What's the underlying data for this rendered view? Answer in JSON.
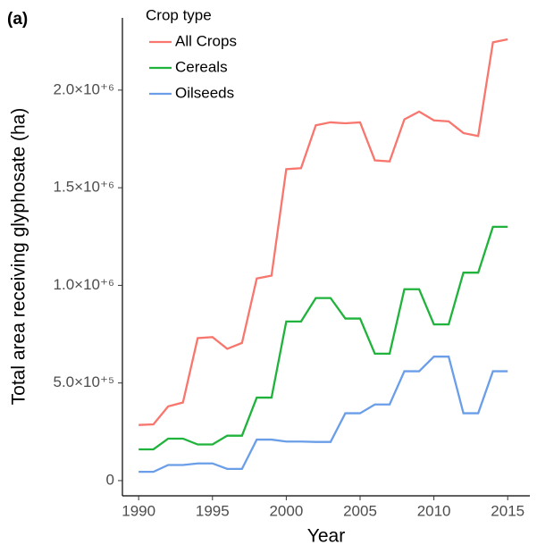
{
  "chart_data": {
    "type": "line",
    "annotation": "(a)",
    "x_label": "Year",
    "y_label": "Total area receiving glyphosate (ha)",
    "legend_title": "Crop type",
    "legend": "top-left",
    "x": [
      1990,
      1991,
      1992,
      1993,
      1994,
      1995,
      1996,
      1997,
      1998,
      1999,
      2000,
      2001,
      2002,
      2003,
      2004,
      2005,
      2006,
      2007,
      2008,
      2009,
      2010,
      2011,
      2012,
      2013,
      2014,
      2015
    ],
    "series": [
      {
        "name": "All Crops",
        "color": "#f8766d",
        "values": [
          285000,
          288000,
          380000,
          400000,
          730000,
          735000,
          675000,
          705000,
          1035000,
          1050000,
          1595000,
          1600000,
          1820000,
          1835000,
          1830000,
          1835000,
          1640000,
          1635000,
          1850000,
          1890000,
          1845000,
          1840000,
          1780000,
          1765000,
          2245000,
          2260000
        ]
      },
      {
        "name": "Cereals",
        "color": "#1fb33b",
        "values": [
          160000,
          160000,
          215000,
          215000,
          185000,
          185000,
          230000,
          230000,
          425000,
          425000,
          815000,
          815000,
          935000,
          935000,
          830000,
          830000,
          650000,
          650000,
          980000,
          980000,
          800000,
          800000,
          1065000,
          1065000,
          1300000,
          1300000
        ]
      },
      {
        "name": "Oilseeds",
        "color": "#6a9ee8",
        "values": [
          45000,
          45000,
          80000,
          80000,
          88000,
          88000,
          60000,
          60000,
          210000,
          210000,
          200000,
          200000,
          198000,
          198000,
          345000,
          345000,
          390000,
          390000,
          560000,
          560000,
          635000,
          635000,
          345000,
          345000,
          560000,
          560000
        ]
      }
    ],
    "xlim": [
      1988.9,
      2016.5
    ],
    "xticks": [
      1990,
      1995,
      2000,
      2005,
      2010,
      2015
    ],
    "ylim": [
      -78000,
      2370000
    ],
    "yticks": [
      0,
      {
        "value": 500000,
        "label": "5.0×10⁺⁵"
      },
      {
        "value": 1000000,
        "label": "1.0×10⁺⁶"
      },
      {
        "value": 1500000,
        "label": "1.5×10⁺⁶"
      },
      {
        "value": 2000000,
        "label": "2.0×10⁺⁶"
      }
    ],
    "grid": false
  }
}
